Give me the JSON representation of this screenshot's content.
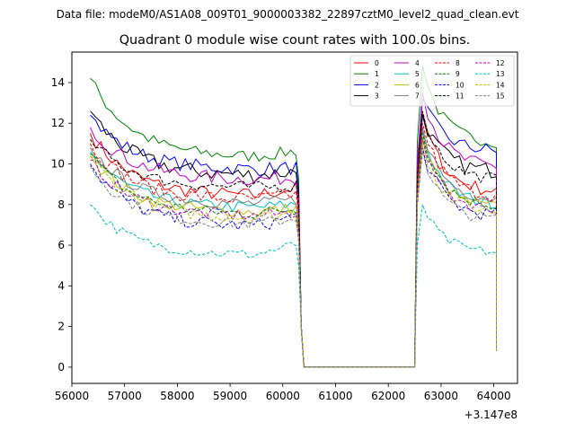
{
  "chart_data": {
    "type": "line",
    "suptitle": "Data file: modeM0/AS1A08_009T01_9000003382_22897cztM0_level2_quad_clean.evt",
    "title": "Quadrant 0 module wise count rates with 100.0s bins.",
    "xlabel": "",
    "ylabel": "",
    "x_offset_label": "+3.147e8",
    "xlim": [
      56000,
      64450
    ],
    "ylim": [
      -0.8,
      15.5
    ],
    "x_ticks": [
      56000,
      57000,
      58000,
      59000,
      60000,
      61000,
      62000,
      63000,
      64000
    ],
    "x_tick_labels": [
      "56000",
      "57000",
      "58000",
      "59000",
      "60000",
      "61000",
      "62000",
      "63000",
      "64000"
    ],
    "y_ticks": [
      0,
      2,
      4,
      6,
      8,
      10,
      12,
      14
    ],
    "y_tick_labels": [
      "0",
      "2",
      "4",
      "6",
      "8",
      "10",
      "12",
      "14"
    ],
    "segments": [
      {
        "x_start": 56350,
        "x_end": 60250,
        "step": 100
      },
      {
        "x_start": 62550,
        "x_end": 64050,
        "step": 100
      }
    ],
    "gap": {
      "x_start": 60300,
      "x_end": 62500,
      "drop_points": [
        [
          60300,
          8.0
        ],
        [
          60350,
          2.0
        ],
        [
          60400,
          0.0
        ]
      ],
      "rise_points": [
        [
          62500,
          0.0
        ],
        [
          62550,
          10.0
        ]
      ],
      "end_point": [
        64050,
        0.8
      ]
    },
    "series": [
      {
        "name": "0",
        "color": "#ff0000",
        "dash": "solid",
        "start": 11.5,
        "plateau": 8.4,
        "end": 8.8,
        "peak": 12.5,
        "seg2_end": 8.6,
        "noise": 0.35
      },
      {
        "name": "1",
        "color": "#008000",
        "dash": "solid",
        "start": 14.2,
        "plateau": 10.3,
        "end": 10.6,
        "peak": 14.8,
        "seg2_end": 11.0,
        "noise": 0.3
      },
      {
        "name": "2",
        "color": "#0000ff",
        "dash": "solid",
        "start": 12.4,
        "plateau": 9.7,
        "end": 9.8,
        "peak": 13.2,
        "seg2_end": 10.6,
        "noise": 0.35
      },
      {
        "name": "3",
        "color": "#000000",
        "dash": "solid",
        "start": 12.6,
        "plateau": 9.4,
        "end": 9.6,
        "peak": 12.4,
        "seg2_end": 9.6,
        "noise": 0.4
      },
      {
        "name": "4",
        "color": "#bf00bf",
        "dash": "solid",
        "start": 11.8,
        "plateau": 9.2,
        "end": 9.3,
        "peak": 13.5,
        "seg2_end": 9.8,
        "noise": 0.35
      },
      {
        "name": "5",
        "color": "#00bfbf",
        "dash": "solid",
        "start": 10.6,
        "plateau": 7.8,
        "end": 8.0,
        "peak": 11.6,
        "seg2_end": 8.0,
        "noise": 0.3
      },
      {
        "name": "6",
        "color": "#bfbf00",
        "dash": "solid",
        "start": 10.4,
        "plateau": 7.6,
        "end": 7.8,
        "peak": 11.3,
        "seg2_end": 7.8,
        "noise": 0.3
      },
      {
        "name": "7",
        "color": "#808080",
        "dash": "solid",
        "start": 10.8,
        "plateau": 8.0,
        "end": 8.2,
        "peak": 11.8,
        "seg2_end": 8.2,
        "noise": 0.3
      },
      {
        "name": "8",
        "color": "#ff0000",
        "dash": "dashed",
        "start": 11.0,
        "plateau": 8.2,
        "end": 8.5,
        "peak": 12.0,
        "seg2_end": 8.4,
        "noise": 0.35
      },
      {
        "name": "9",
        "color": "#008000",
        "dash": "dashed",
        "start": 10.5,
        "plateau": 7.5,
        "end": 7.8,
        "peak": 11.5,
        "seg2_end": 7.9,
        "noise": 0.3
      },
      {
        "name": "10",
        "color": "#0000ff",
        "dash": "dashed",
        "start": 10.0,
        "plateau": 6.9,
        "end": 7.4,
        "peak": 10.8,
        "seg2_end": 7.4,
        "noise": 0.35
      },
      {
        "name": "11",
        "color": "#000000",
        "dash": "dashed",
        "start": 11.2,
        "plateau": 8.8,
        "end": 8.9,
        "peak": 12.6,
        "seg2_end": 9.2,
        "noise": 0.3
      },
      {
        "name": "12",
        "color": "#bf00bf",
        "dash": "dashed",
        "start": 10.2,
        "plateau": 7.4,
        "end": 7.6,
        "peak": 11.2,
        "seg2_end": 7.7,
        "noise": 0.3
      },
      {
        "name": "13",
        "color": "#00bfbf",
        "dash": "dashed",
        "start": 8.0,
        "plateau": 5.5,
        "end": 6.0,
        "peak": 8.0,
        "seg2_end": 5.6,
        "noise": 0.25
      },
      {
        "name": "14",
        "color": "#bfbf00",
        "dash": "dashed",
        "start": 10.4,
        "plateau": 7.3,
        "end": 7.6,
        "peak": 11.0,
        "seg2_end": 7.6,
        "noise": 0.3
      },
      {
        "name": "15",
        "color": "#808080",
        "dash": "dashed",
        "start": 9.9,
        "plateau": 7.0,
        "end": 7.3,
        "peak": 10.6,
        "seg2_end": 7.2,
        "noise": 0.3
      }
    ],
    "legend": {
      "location": "upper right",
      "columns": 4
    }
  }
}
